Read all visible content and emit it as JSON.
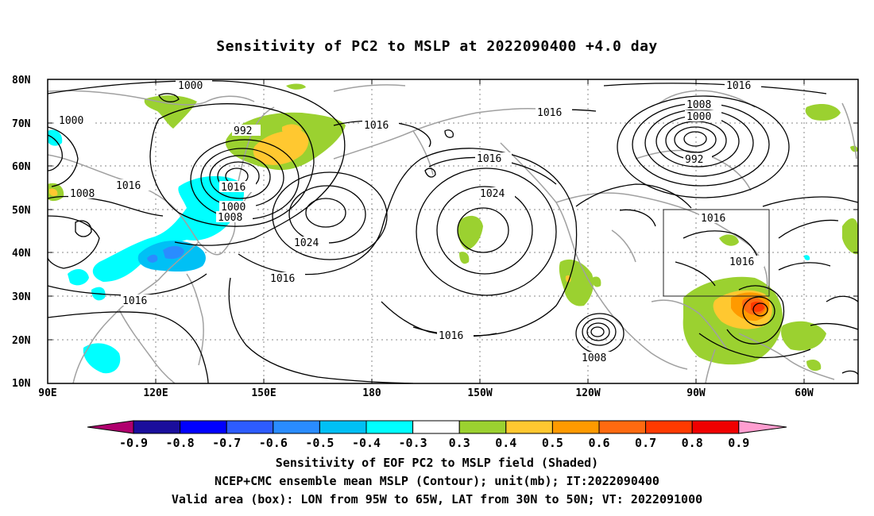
{
  "title": "Sensitivity of PC2 to MSLP at 2022090400 +4.0 day",
  "map": {
    "lat_labels": [
      "80N",
      "70N",
      "60N",
      "50N",
      "40N",
      "30N",
      "20N",
      "10N"
    ],
    "lon_labels": [
      "90E",
      "120E",
      "150E",
      "180",
      "150W",
      "120W",
      "90W",
      "60W"
    ],
    "contour_labels": [
      "1000",
      "1000",
      "992",
      "1016",
      "1016",
      "1008",
      "1016",
      "1000",
      "1008",
      "1024",
      "1016",
      "1016",
      "1016",
      "1024",
      "1016",
      "1008",
      "1016",
      "1008",
      "1000",
      "992",
      "1016",
      "1016"
    ],
    "valid_box": {
      "lon_from": "95W",
      "lon_to": "65W",
      "lat_from": "30N",
      "lat_to": "50N"
    }
  },
  "colorbar": {
    "labels": [
      "-0.9",
      "-0.8",
      "-0.7",
      "-0.6",
      "-0.5",
      "-0.4",
      "-0.3",
      "0.3",
      "0.4",
      "0.5",
      "0.6",
      "0.7",
      "0.8",
      "0.9"
    ],
    "colors": [
      "#b0006e",
      "#1a0e9c",
      "#0000ff",
      "#2d5cff",
      "#2a8cff",
      "#00c0f5",
      "#00ffff",
      "#ffffff",
      "#9bd130",
      "#ffc830",
      "#ff9a00",
      "#ff6a10",
      "#ff3a00",
      "#f00000",
      "#ff9ed0"
    ]
  },
  "captions": {
    "line1": "Sensitivity of EOF PC2 to MSLP field (Shaded)",
    "line2": "NCEP+CMC ensemble mean MSLP (Contour); unit(mb); IT:2022090400",
    "line3": "Valid area (box): LON from 95W to 65W, LAT from 30N to 50N; VT: 2022091000"
  }
}
